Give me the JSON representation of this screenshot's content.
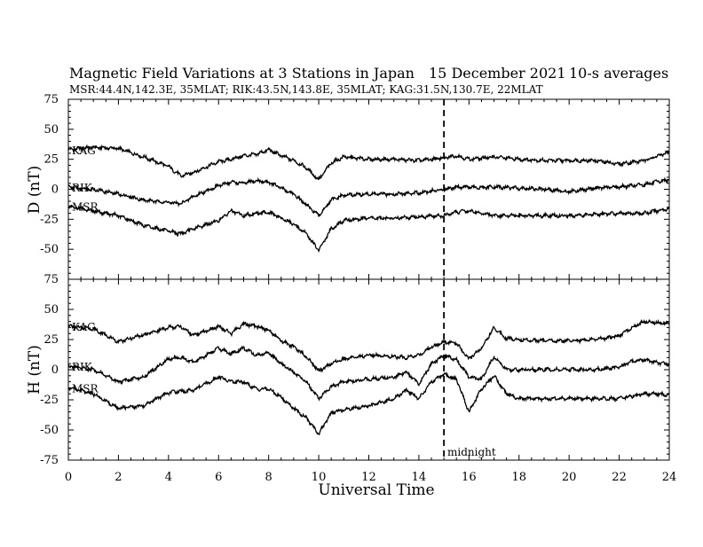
{
  "header": {
    "title": "Magnetic Field Variations at 3 Stations in Japan",
    "date": "15 December 2021",
    "averaging": "10-s averages",
    "stations": "MSR:44.4N,142.3E, 35MLAT;  RIK:43.5N,143.8E, 35MLAT;  KAG:31.5N,130.7E, 22MLAT"
  },
  "chart_data": [
    {
      "type": "line",
      "ylabel": "D (nT)",
      "xlabel": "",
      "xlim": [
        0,
        24
      ],
      "ylim": [
        -75,
        75
      ],
      "x_ticks": [
        0,
        2,
        4,
        6,
        8,
        10,
        12,
        14,
        16,
        18,
        20,
        22,
        24
      ],
      "y_ticks": [
        -75,
        -50,
        -25,
        0,
        25,
        50,
        75
      ],
      "x_sample": [
        0,
        1,
        2,
        3,
        4,
        4.5,
        5,
        6,
        6.5,
        7,
        7.5,
        8,
        8.5,
        9,
        9.5,
        10,
        10.5,
        11,
        12,
        13,
        14,
        15,
        15.5,
        16,
        16.5,
        17,
        18,
        19,
        20,
        21,
        22,
        23,
        24
      ],
      "series": [
        {
          "name": "KAG",
          "values": [
            33,
            35,
            34,
            27,
            19,
            11,
            14,
            23,
            25,
            28,
            29,
            33,
            28,
            24,
            18,
            8,
            22,
            27,
            25,
            25,
            24,
            26,
            28,
            25,
            26,
            27,
            25,
            24,
            24,
            24,
            21,
            24,
            31
          ]
        },
        {
          "name": "RIK",
          "values": [
            2,
            0,
            -4,
            -9,
            -11,
            -12,
            -6,
            3,
            6,
            5,
            7,
            6,
            1,
            -4,
            -13,
            -22,
            -9,
            -5,
            -4,
            -4,
            -3,
            0,
            2,
            2,
            1,
            2,
            1,
            0,
            -2,
            1,
            2,
            4,
            8
          ]
        },
        {
          "name": "MSR",
          "values": [
            -14,
            -18,
            -22,
            -30,
            -35,
            -37,
            -33,
            -26,
            -18,
            -22,
            -20,
            -19,
            -24,
            -29,
            -37,
            -51,
            -33,
            -26,
            -24,
            -24,
            -23,
            -22,
            -19,
            -18,
            -20,
            -22,
            -22,
            -22,
            -22,
            -21,
            -20,
            -20,
            -16
          ]
        }
      ]
    },
    {
      "type": "line",
      "ylabel": "H (nT)",
      "xlabel": "Universal Time",
      "xlim": [
        0,
        24
      ],
      "ylim": [
        -75,
        75
      ],
      "x_ticks": [
        0,
        2,
        4,
        6,
        8,
        10,
        12,
        14,
        16,
        18,
        20,
        22,
        24
      ],
      "y_ticks": [
        -75,
        -50,
        -25,
        0,
        25,
        50,
        75
      ],
      "x_sample": [
        0,
        1,
        2,
        3,
        4,
        4.5,
        5,
        6,
        6.5,
        7,
        7.5,
        8,
        8.5,
        9,
        9.5,
        10,
        10.5,
        11,
        12,
        13,
        13.5,
        14,
        14.5,
        15,
        15.5,
        16,
        16.5,
        17,
        17.5,
        18,
        19,
        20,
        21,
        22,
        22.5,
        23,
        23.5,
        24
      ],
      "series": [
        {
          "name": "KAG",
          "values": [
            36,
            34,
            23,
            29,
            35,
            36,
            28,
            36,
            30,
            38,
            36,
            33,
            24,
            19,
            11,
            -1,
            5,
            9,
            12,
            11,
            10,
            12,
            19,
            23,
            22,
            9,
            18,
            35,
            26,
            25,
            24,
            24,
            25,
            28,
            35,
            40,
            39,
            38
          ]
        },
        {
          "name": "RIK",
          "values": [
            3,
            0,
            -10,
            -6,
            9,
            10,
            6,
            18,
            13,
            18,
            12,
            14,
            5,
            -2,
            -10,
            -24,
            -14,
            -10,
            -8,
            -6,
            -2,
            -12,
            5,
            12,
            8,
            -6,
            -8,
            11,
            0,
            0,
            0,
            0,
            0,
            2,
            7,
            8,
            6,
            4
          ]
        },
        {
          "name": "MSR",
          "values": [
            -15,
            -20,
            -32,
            -30,
            -19,
            -18,
            -17,
            -6,
            -10,
            -10,
            -16,
            -16,
            -23,
            -32,
            -40,
            -53,
            -36,
            -33,
            -30,
            -24,
            -17,
            -24,
            -10,
            -4,
            -8,
            -35,
            -16,
            -5,
            -20,
            -24,
            -24,
            -24,
            -24,
            -24,
            -22,
            -20,
            -20,
            -21
          ]
        }
      ]
    }
  ],
  "midnight": {
    "x": 15,
    "label": "midnight"
  }
}
